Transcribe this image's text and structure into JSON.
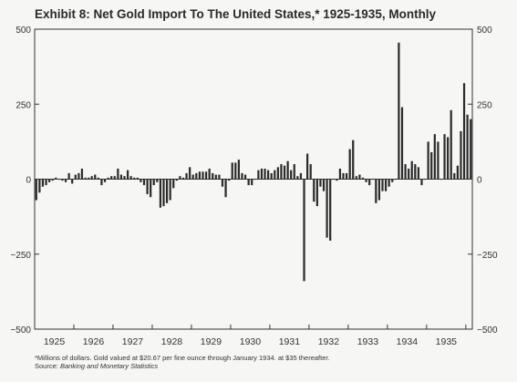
{
  "title": "Exhibit 8: Net Gold Import To The United States,* 1925-1935, Monthly",
  "footnote": "*Millions of dollars. Gold valued at $20.67 per fine ounce through January 1934. at $35 thereafter.",
  "source_label": "Source:",
  "source_text": "Banking and Monetary Statistics",
  "chart_data": {
    "type": "bar",
    "title": "Exhibit 8: Net Gold Import To The United States,* 1925-1935, Monthly",
    "xlabel": "",
    "ylabel": "",
    "ylim": [
      -500,
      500
    ],
    "yticks_left": [
      "500",
      "250",
      "0",
      "−250",
      "−500"
    ],
    "yticks_right": [
      "500",
      "250",
      "0",
      "−250",
      "−500"
    ],
    "ytick_values": [
      500,
      250,
      0,
      -250,
      -500
    ],
    "xticks": [
      "1925",
      "1926",
      "1927",
      "1928",
      "1929",
      "1930",
      "1931",
      "1932",
      "1933",
      "1934",
      "1935"
    ],
    "x_start_year": 1925,
    "bar_color": "#2b2b2b",
    "grid": false,
    "series": [
      {
        "values": [
          -70,
          -45,
          -25,
          -20,
          -10,
          -5,
          5,
          0,
          -5,
          -10,
          20,
          -15,
          15,
          20,
          35,
          5,
          5,
          10,
          15,
          5,
          -20,
          -10,
          5,
          10,
          10,
          35,
          15,
          10,
          30,
          10,
          5,
          5,
          -10,
          -20,
          -50,
          -60,
          -20,
          -10,
          -95,
          -90,
          -80,
          -70,
          -30,
          -5,
          10,
          5,
          20,
          40,
          15,
          20,
          25,
          25,
          25,
          35,
          20,
          15,
          15,
          -25,
          -60,
          -5,
          55,
          55,
          65,
          20,
          15,
          -20,
          -20,
          0,
          30,
          35,
          35,
          30,
          20,
          30,
          40,
          50,
          45,
          60,
          30,
          50,
          10,
          20,
          -340,
          85,
          50,
          -75,
          -90,
          -25,
          -40,
          -195,
          -205,
          0,
          -5,
          35,
          20,
          20,
          100,
          130,
          10,
          15,
          5,
          -10,
          -20,
          0,
          -80,
          -70,
          -40,
          -40,
          -25,
          -10,
          0,
          455,
          240,
          50,
          35,
          60,
          50,
          40,
          -20,
          0,
          125,
          90,
          150,
          125,
          0,
          150,
          140,
          230,
          20,
          45,
          160,
          320,
          215,
          200
        ]
      }
    ]
  }
}
